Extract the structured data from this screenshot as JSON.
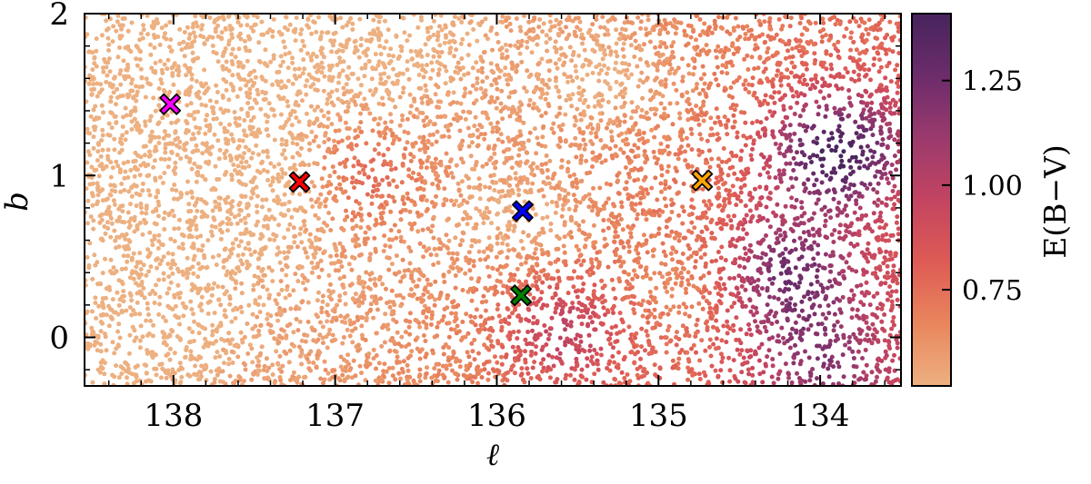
{
  "chart_data": {
    "type": "scatter",
    "title": "",
    "xlabel": "ℓ",
    "ylabel": "b",
    "xlim": [
      138.55,
      133.5
    ],
    "ylim": [
      -0.3,
      2.0
    ],
    "x_ticks": [
      138,
      137,
      136,
      135,
      134
    ],
    "y_ticks": [
      0,
      1,
      2
    ],
    "x_tick_labels": [
      "138",
      "137",
      "136",
      "135",
      "134"
    ],
    "y_tick_labels": [
      "0",
      "1",
      "2"
    ],
    "grid": false,
    "point_style": "dense field of small dots, each colored by E(B−V) on the colorbar scale (light orange = low, dark purple = high)",
    "extinction_field": {
      "low_value_regions": [
        {
          "l": 137.25,
          "b": 0.95,
          "value": 0.62
        },
        {
          "l": 138.05,
          "b": 1.45,
          "value": 0.62
        },
        {
          "l": 135.85,
          "b": 0.75,
          "value": 0.62
        },
        {
          "l": 135.3,
          "b": 1.6,
          "value": 0.6
        },
        {
          "l": 134.8,
          "b": 0.3,
          "value": 0.63
        },
        {
          "l": 138.2,
          "b": 0.1,
          "value": 0.65
        },
        {
          "l": 136.7,
          "b": 1.8,
          "value": 0.66
        }
      ],
      "high_value_regions": [
        {
          "l": 133.9,
          "b": 1.15,
          "value": 1.38
        },
        {
          "l": 134.2,
          "b": 0.4,
          "value": 1.2
        },
        {
          "l": 134.0,
          "b": -0.15,
          "value": 1.05
        },
        {
          "l": 135.6,
          "b": 0.05,
          "value": 1.0
        },
        {
          "l": 136.85,
          "b": 1.0,
          "value": 0.98
        }
      ]
    },
    "markers": [
      {
        "name": "magenta",
        "l": 138.02,
        "b": 1.44,
        "color": "#ff00ff",
        "symbol": "X"
      },
      {
        "name": "red",
        "l": 137.22,
        "b": 0.96,
        "color": "#ff0000",
        "symbol": "X"
      },
      {
        "name": "blue",
        "l": 135.84,
        "b": 0.78,
        "color": "#0000ff",
        "symbol": "X"
      },
      {
        "name": "green",
        "l": 135.85,
        "b": 0.26,
        "color": "#008000",
        "symbol": "X"
      },
      {
        "name": "orange",
        "l": 134.73,
        "b": 0.97,
        "color": "#ffa500",
        "symbol": "X"
      }
    ],
    "colorbar": {
      "label": "E(B−V)",
      "range": [
        0.52,
        1.41
      ],
      "ticks": [
        0.75,
        1.0,
        1.25
      ],
      "tick_labels": [
        "0.75",
        "1.00",
        "1.25"
      ],
      "colormap": "flare",
      "stops": [
        "#edb081",
        "#e9865d",
        "#de5b55",
        "#c34461",
        "#9a3a6d",
        "#6c2c6b",
        "#47245c"
      ]
    },
    "frame_color": "#000000"
  }
}
